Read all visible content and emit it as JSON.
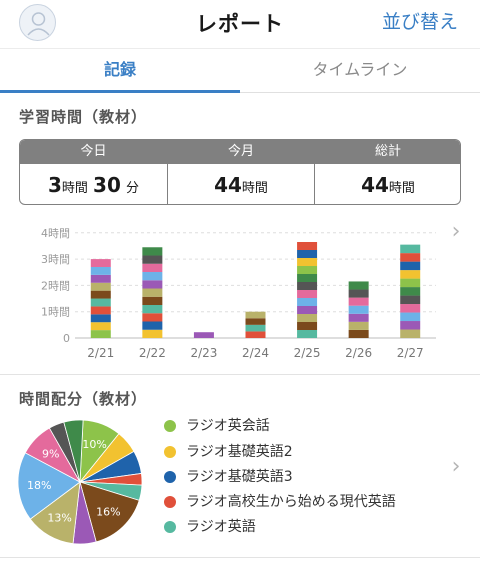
{
  "header": {
    "title": "レポート",
    "sort_label": "並び替え"
  },
  "tabs": [
    {
      "label": "記録",
      "active": true
    },
    {
      "label": "タイムライン",
      "active": false
    }
  ],
  "study_time": {
    "title": "学習時間（教材）",
    "summary": [
      {
        "label": "今日",
        "hours": "3",
        "hours_unit": "時間",
        "minutes": "30",
        "minutes_unit": "分"
      },
      {
        "label": "今月",
        "hours": "44",
        "hours_unit": "時間"
      },
      {
        "label": "総計",
        "hours": "44",
        "hours_unit": "時間"
      }
    ]
  },
  "chart_data": [
    {
      "type": "bar",
      "stacked": true,
      "categories": [
        "2/21",
        "2/22",
        "2/23",
        "2/24",
        "2/25",
        "2/26",
        "2/27"
      ],
      "totals_hours": [
        3.0,
        3.45,
        0.22,
        1.0,
        3.65,
        2.15,
        3.55
      ],
      "ylim": [
        0,
        4
      ],
      "yticks": [
        "0",
        "1時間",
        "2時間",
        "3時間",
        "4時間"
      ],
      "grid": true,
      "colors": [
        "#8dc34a",
        "#f2c230",
        "#1f63ab",
        "#e0503a",
        "#56b9a0",
        "#7b4a1c",
        "#b9b26a",
        "#9b59b6",
        "#6db2e8",
        "#e46a9c",
        "#555555",
        "#3f8a4a"
      ]
    },
    {
      "type": "pie",
      "title": "時間配分（教材）",
      "slices": [
        {
          "label": "ラジオ英会話",
          "value": 10,
          "color": "#8dc34a",
          "show_label": "10%"
        },
        {
          "label": "ラジオ基礎英語2",
          "value": 6,
          "color": "#f2c230"
        },
        {
          "label": "ラジオ基礎英語3",
          "value": 6,
          "color": "#1f63ab"
        },
        {
          "label": "ラジオ高校生から始める現代英語",
          "value": 3,
          "color": "#e0503a"
        },
        {
          "label": "ラジオ英語",
          "value": 4,
          "color": "#56b9a0"
        },
        {
          "value": 16,
          "color": "#7b4a1c",
          "show_label": "16%"
        },
        {
          "value": 6,
          "color": "#9b59b6"
        },
        {
          "value": 13,
          "color": "#b9b26a",
          "show_label": "13%"
        },
        {
          "value": 18,
          "color": "#6db2e8",
          "show_label": "18%"
        },
        {
          "value": 9,
          "color": "#e46a9c",
          "show_label": "9%"
        },
        {
          "value": 4,
          "color": "#555555"
        },
        {
          "value": 5,
          "color": "#3f8a4a"
        }
      ]
    }
  ],
  "legend": [
    {
      "label": "ラジオ英会話",
      "color": "#8dc34a"
    },
    {
      "label": "ラジオ基礎英語2",
      "color": "#f2c230"
    },
    {
      "label": "ラジオ基礎英語3",
      "color": "#1f63ab"
    },
    {
      "label": "ラジオ高校生から始める現代英語",
      "color": "#e0503a"
    },
    {
      "label": "ラジオ英語",
      "color": "#56b9a0"
    }
  ],
  "icons": {
    "chevron": "chevron-right-icon",
    "avatar": "user-avatar-icon"
  }
}
